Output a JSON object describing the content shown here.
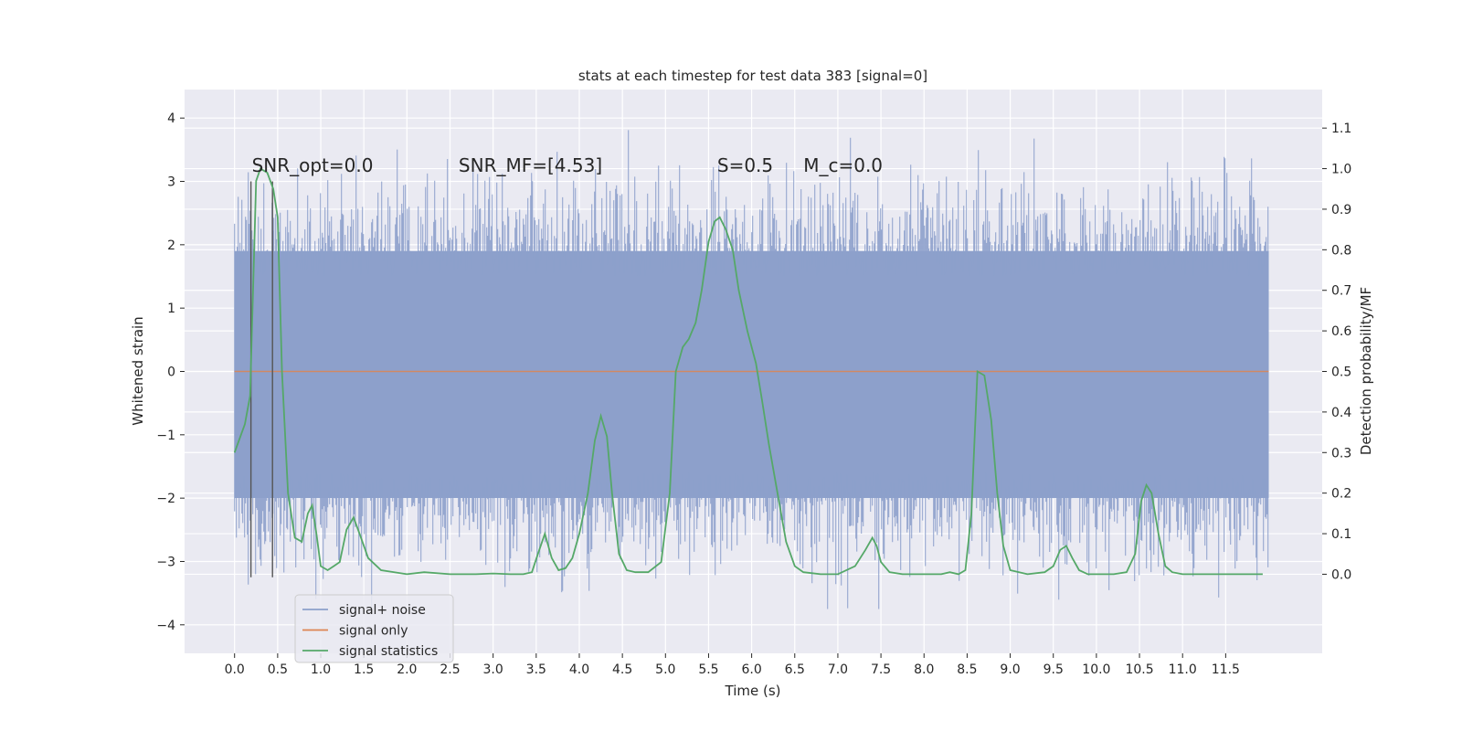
{
  "chart_data": {
    "type": "line",
    "title": "stats at each timestep for test data 383 [signal=0]",
    "xlabel": "Time (s)",
    "ylabel_left": "Whitened strain",
    "ylabel_right": "Detection probability/MF",
    "xlim": [
      -0.58,
      12.62
    ],
    "ylim_left": [
      -4.45,
      4.45
    ],
    "ylim_right": [
      -0.195,
      1.195
    ],
    "x_ticks": [
      0.0,
      0.5,
      1.0,
      1.5,
      2.0,
      2.5,
      3.0,
      3.5,
      4.0,
      4.5,
      5.0,
      5.5,
      6.0,
      6.5,
      7.0,
      7.5,
      8.0,
      8.5,
      9.0,
      9.5,
      10.0,
      10.5,
      11.0,
      11.5
    ],
    "x_tick_labels": [
      "0.0",
      "0.5",
      "1.0",
      "1.5",
      "2.0",
      "2.5",
      "3.0",
      "3.5",
      "4.0",
      "4.5",
      "5.0",
      "5.5",
      "6.0",
      "6.5",
      "7.0",
      "7.5",
      "8.0",
      "8.5",
      "9.0",
      "9.5",
      "10.0",
      "10.5",
      "11.0",
      "11.5"
    ],
    "y_left_ticks": [
      -4,
      -3,
      -2,
      -1,
      0,
      1,
      2,
      3,
      4
    ],
    "y_left_tick_labels": [
      "−4",
      "−3",
      "−2",
      "−1",
      "0",
      "1",
      "2",
      "3",
      "4"
    ],
    "y_right_ticks": [
      0.0,
      0.1,
      0.2,
      0.3,
      0.4,
      0.5,
      0.6,
      0.7,
      0.8,
      0.9,
      1.0,
      1.1
    ],
    "y_right_tick_labels": [
      "0.0",
      "0.1",
      "0.2",
      "0.3",
      "0.4",
      "0.5",
      "0.6",
      "0.7",
      "0.8",
      "0.9",
      "1.0",
      "1.1"
    ],
    "grid": true,
    "annotations": [
      {
        "text": "SNR_opt=0.0",
        "x": 0.2,
        "y": 3.15
      },
      {
        "text": "SNR_MF=[4.53]",
        "x": 2.6,
        "y": 3.15
      },
      {
        "text": "S=0.5",
        "x": 5.6,
        "y": 3.15
      },
      {
        "text": "M_c=0.0",
        "x": 6.6,
        "y": 3.15
      }
    ],
    "vertical_lines": [
      {
        "x": 0.19,
        "y_range": [
          -3.25,
          3.0
        ]
      },
      {
        "x": 0.44,
        "y_range": [
          -3.25,
          3.0
        ]
      }
    ],
    "series": [
      {
        "name": "signal+ noise",
        "axis": "left",
        "color": "#8da0cb",
        "x_start": 0.0,
        "x_end": 12.0,
        "band_low": -2.0,
        "band_high": 1.9,
        "min": -3.75,
        "max": 4.05
      },
      {
        "name": "signal only",
        "axis": "left",
        "color": "#dd8452",
        "x": [
          0.0,
          12.0
        ],
        "y": [
          0.0,
          0.0
        ]
      },
      {
        "name": "signal statistics",
        "axis": "right",
        "color": "#55a868",
        "x": [
          0.0,
          0.12,
          0.18,
          0.25,
          0.3,
          0.38,
          0.45,
          0.5,
          0.55,
          0.62,
          0.7,
          0.78,
          0.85,
          0.9,
          0.95,
          1.0,
          1.08,
          1.15,
          1.22,
          1.3,
          1.38,
          1.45,
          1.55,
          1.7,
          2.0,
          2.2,
          2.5,
          2.8,
          3.0,
          3.2,
          3.35,
          3.45,
          3.52,
          3.6,
          3.68,
          3.76,
          3.84,
          3.92,
          4.0,
          4.1,
          4.18,
          4.25,
          4.32,
          4.38,
          4.46,
          4.55,
          4.65,
          4.8,
          4.95,
          5.05,
          5.12,
          5.2,
          5.27,
          5.35,
          5.42,
          5.5,
          5.57,
          5.63,
          5.7,
          5.78,
          5.85,
          5.95,
          6.05,
          6.12,
          6.2,
          6.3,
          6.4,
          6.5,
          6.6,
          6.8,
          7.0,
          7.2,
          7.32,
          7.4,
          7.45,
          7.5,
          7.6,
          7.75,
          8.0,
          8.2,
          8.3,
          8.4,
          8.48,
          8.55,
          8.62,
          8.7,
          8.78,
          8.85,
          8.92,
          9.0,
          9.2,
          9.4,
          9.5,
          9.58,
          9.65,
          9.72,
          9.8,
          9.9,
          10.0,
          10.2,
          10.35,
          10.45,
          10.52,
          10.58,
          10.64,
          10.72,
          10.8,
          10.88,
          11.0,
          11.3,
          11.6,
          11.93
        ],
        "y": [
          0.3,
          0.37,
          0.44,
          0.97,
          1.0,
          0.99,
          0.95,
          0.88,
          0.5,
          0.2,
          0.09,
          0.08,
          0.15,
          0.17,
          0.1,
          0.02,
          0.01,
          0.02,
          0.03,
          0.11,
          0.14,
          0.1,
          0.04,
          0.01,
          0.0,
          0.005,
          0.0,
          0.0,
          0.002,
          0.0,
          0.0,
          0.005,
          0.05,
          0.1,
          0.04,
          0.01,
          0.015,
          0.04,
          0.1,
          0.2,
          0.33,
          0.39,
          0.34,
          0.2,
          0.05,
          0.01,
          0.005,
          0.005,
          0.03,
          0.2,
          0.5,
          0.56,
          0.58,
          0.62,
          0.7,
          0.82,
          0.87,
          0.88,
          0.85,
          0.8,
          0.7,
          0.6,
          0.52,
          0.43,
          0.32,
          0.2,
          0.08,
          0.02,
          0.005,
          0.0,
          0.0,
          0.02,
          0.06,
          0.09,
          0.07,
          0.03,
          0.005,
          0.0,
          0.0,
          0.0,
          0.005,
          0.0,
          0.01,
          0.15,
          0.5,
          0.49,
          0.38,
          0.2,
          0.07,
          0.01,
          0.0,
          0.005,
          0.02,
          0.06,
          0.07,
          0.04,
          0.01,
          0.0,
          0.0,
          0.0,
          0.005,
          0.05,
          0.18,
          0.22,
          0.2,
          0.1,
          0.02,
          0.005,
          0.0,
          0.0,
          0.0,
          0.0
        ]
      }
    ],
    "legend": {
      "placement": "lower-left",
      "entries": [
        {
          "label": "signal+ noise",
          "color": "#8da0cb"
        },
        {
          "label": "signal only",
          "color": "#dd8452"
        },
        {
          "label": "signal statistics",
          "color": "#55a868"
        }
      ]
    },
    "colors": {
      "background": "#eaeaf2",
      "grid": "#ffffff",
      "vline": "#555555"
    }
  }
}
